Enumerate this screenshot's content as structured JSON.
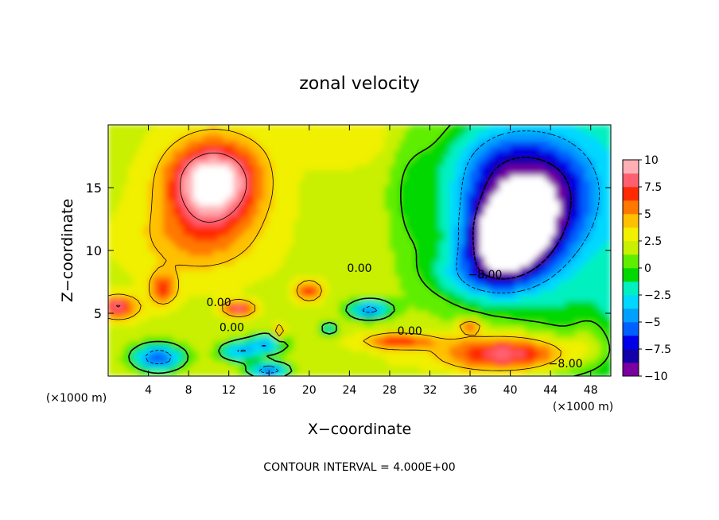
{
  "chart_data": {
    "type": "heatmap",
    "title": "zonal velocity",
    "xlabel": "X−coordinate",
    "ylabel": "Z−coordinate",
    "x_unit": "(×1000 m)",
    "xlim": [
      0,
      50
    ],
    "ylim": [
      0,
      20
    ],
    "x_ticks": [
      4,
      8,
      12,
      16,
      20,
      24,
      28,
      32,
      36,
      40,
      44,
      48
    ],
    "x_tick_labels": [
      "4",
      "8",
      "12",
      "16",
      "20",
      "24",
      "28",
      "32",
      "36",
      "40",
      "44",
      "48"
    ],
    "y_ticks": [
      5,
      10,
      15
    ],
    "y_tick_labels": [
      "5",
      "10",
      "15"
    ],
    "colorbar": {
      "min": -10,
      "max": 10,
      "ticks": [
        10,
        7.5,
        5,
        2.5,
        0,
        -2.5,
        -5,
        -7.5,
        -10
      ],
      "tick_labels": [
        "10",
        "7.5",
        "5",
        "2.5",
        "0",
        "−2.5",
        "−5",
        "−7.5",
        "−10"
      ],
      "colors": [
        "#7a00a0",
        "#1200a8",
        "#0000e8",
        "#0060ff",
        "#00a0ff",
        "#00d8ff",
        "#00f0c0",
        "#00d800",
        "#60ee00",
        "#c8f000",
        "#f0f000",
        "#ffc000",
        "#ff7800",
        "#ff2a00",
        "#ff6070",
        "#ffb0b4"
      ]
    },
    "contour_labels": [
      {
        "text": "0.00",
        "x": 25,
        "y": 8.6
      },
      {
        "text": "0.00",
        "x": 11,
        "y": 5.9
      },
      {
        "text": "0.00",
        "x": 12.3,
        "y": 3.9
      },
      {
        "text": "0.00",
        "x": 30,
        "y": 3.6
      },
      {
        "text": "−8.00",
        "x": 37.5,
        "y": 8.1
      },
      {
        "text": "−8.00",
        "x": 45.5,
        "y": 1.0
      }
    ],
    "features": [
      {
        "kind": "max",
        "x": 10.5,
        "y": 15.5,
        "value": 9
      },
      {
        "kind": "min",
        "x": 40.5,
        "y": 11,
        "value": -11
      },
      {
        "kind": "min",
        "x": 39.5,
        "y": 17,
        "value": -11
      }
    ],
    "note": "CONTOUR INTERVAL = 4.000E+00"
  }
}
